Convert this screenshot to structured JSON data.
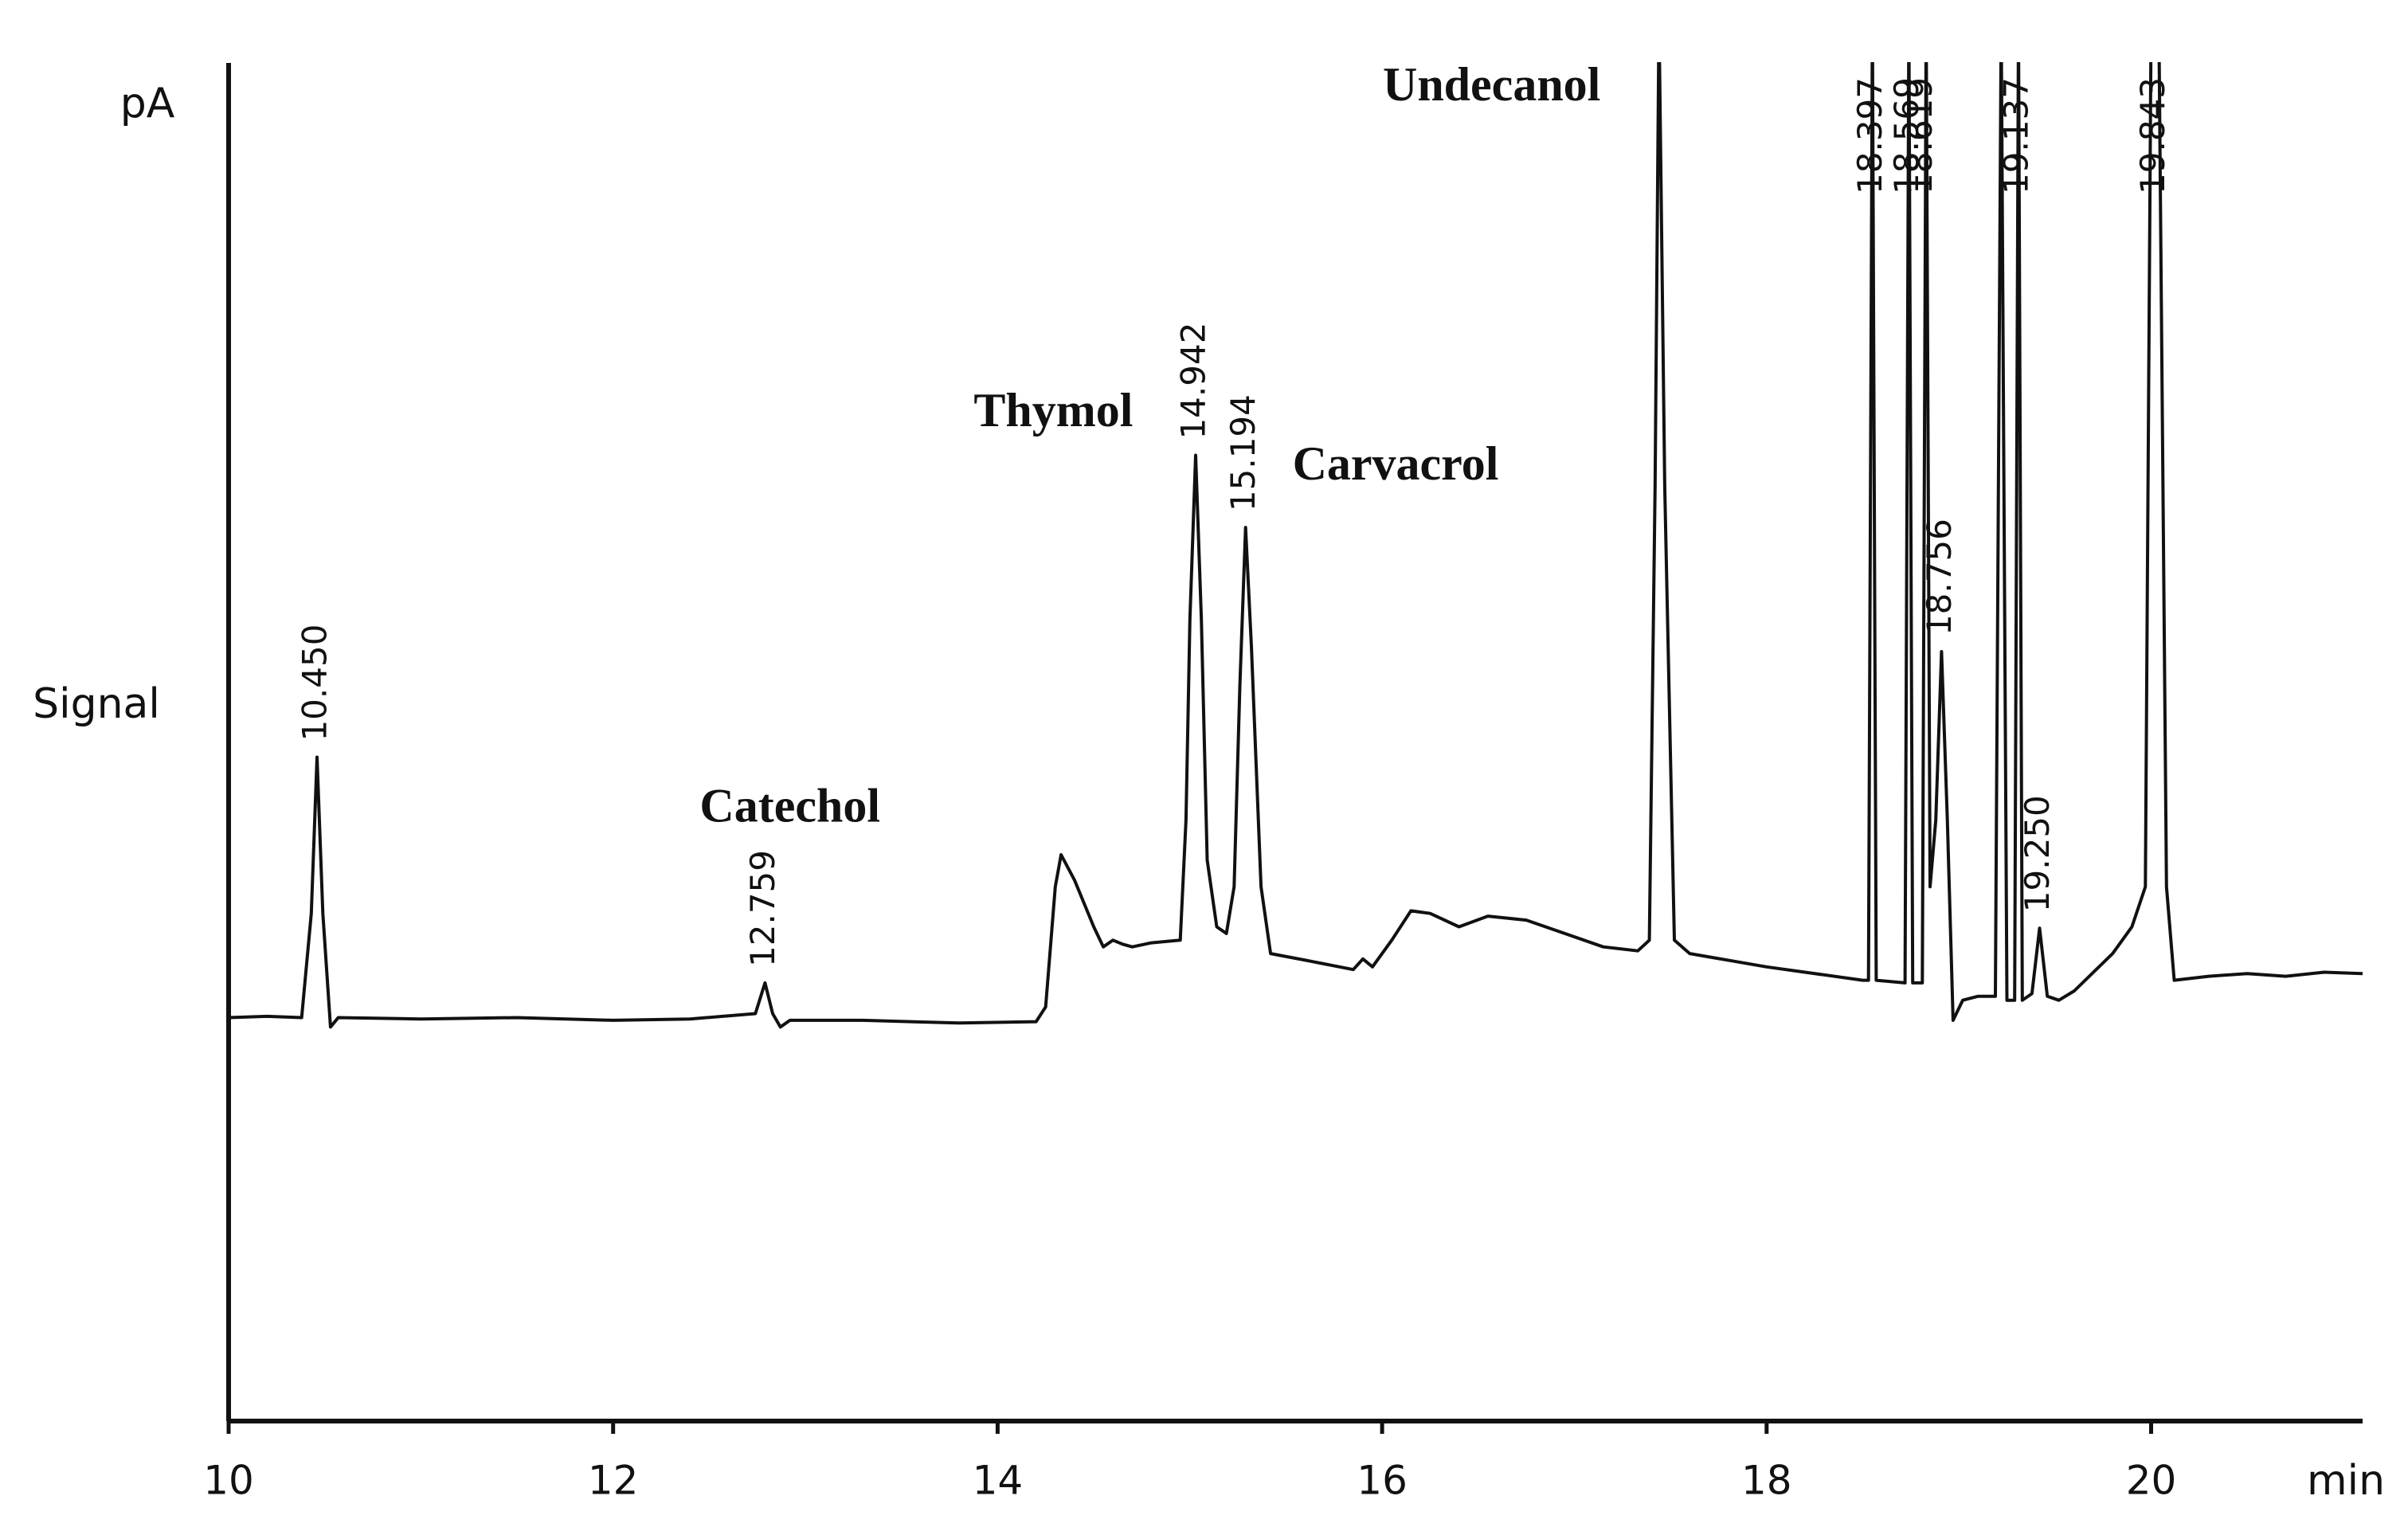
{
  "chart_data": {
    "type": "line",
    "y_axis_unit": "pA",
    "y_axis_label": "Signal",
    "x_axis_unit": "min",
    "xlim": [
      10,
      21.1
    ],
    "xticks": [
      10,
      12,
      14,
      16,
      18,
      20
    ],
    "ylim": [
      0,
      100
    ],
    "series": [
      {
        "color": "#111111",
        "x": [
          10.0,
          10.2,
          10.38,
          10.43,
          10.46,
          10.49,
          10.53,
          10.57,
          11.0,
          11.5,
          12.0,
          12.4,
          12.74,
          12.79,
          12.83,
          12.87,
          12.92,
          13.3,
          13.8,
          14.2,
          14.25,
          14.3,
          14.33,
          14.4,
          14.5,
          14.55,
          14.6,
          14.65,
          14.7,
          14.8,
          14.95,
          14.98,
          15.0,
          15.03,
          15.06,
          15.09,
          15.14,
          15.19,
          15.23,
          15.26,
          15.29,
          15.32,
          15.37,
          15.42,
          15.6,
          15.85,
          15.9,
          15.95,
          16.05,
          16.15,
          16.25,
          16.4,
          16.55,
          16.75,
          16.95,
          17.15,
          17.33,
          17.39,
          17.42,
          17.44,
          17.47,
          17.52,
          17.6,
          18.0,
          18.5,
          18.53,
          18.55,
          18.57,
          18.72,
          18.74,
          18.76,
          18.81,
          18.83,
          18.85,
          18.88,
          18.91,
          18.94,
          18.97,
          19.02,
          19.1,
          19.19,
          19.22,
          19.25,
          19.29,
          19.31,
          19.33,
          19.38,
          19.42,
          19.46,
          19.52,
          19.6,
          19.8,
          19.9,
          19.97,
          20.0,
          20.04,
          20.08,
          20.12,
          20.3,
          20.5,
          20.7,
          20.9,
          21.1
        ],
        "values": [
          30.2,
          30.3,
          30.2,
          38,
          49.7,
          38,
          29.5,
          30.2,
          30.1,
          30.2,
          30.0,
          30.1,
          30.5,
          32.8,
          30.5,
          29.5,
          30.0,
          30.0,
          29.8,
          29.9,
          31,
          40,
          42.4,
          40.5,
          37,
          35.5,
          36.0,
          35.7,
          35.5,
          35.8,
          36,
          45,
          60,
          72.3,
          60,
          42,
          37,
          36.5,
          40,
          55,
          66.9,
          58,
          40,
          35,
          34.5,
          33.8,
          34.6,
          34.0,
          36.0,
          38.2,
          38.0,
          37.0,
          37.8,
          37.5,
          36.5,
          35.5,
          35.2,
          36,
          70,
          105,
          70,
          36,
          35,
          34,
          33,
          33,
          105,
          33,
          32.8,
          105,
          32.8,
          32.8,
          105,
          40,
          45,
          57.6,
          45,
          30,
          31.5,
          31.8,
          31.8,
          105,
          31.5,
          31.5,
          105,
          31.5,
          32,
          36.9,
          31.8,
          31.5,
          32.2,
          35,
          37,
          40,
          105,
          105,
          40,
          33,
          33.3,
          33.5,
          33.3,
          33.6,
          33.5
        ]
      }
    ],
    "peak_labels": [
      {
        "text": "10.450",
        "x": 10.46,
        "y": 49.7
      },
      {
        "text": "12.759",
        "x": 12.79,
        "y": 32.8
      },
      {
        "text": "14.942",
        "x": 15.03,
        "y": 72.3
      },
      {
        "text": "15.194",
        "x": 15.29,
        "y": 66.9
      },
      {
        "text": "18.397",
        "x": 18.55,
        "y": 105
      },
      {
        "text": "18.569",
        "x": 18.74,
        "y": 105
      },
      {
        "text": "18.619",
        "x": 18.81,
        "y": 105
      },
      {
        "text": "18.756",
        "x": 18.91,
        "y": 57.6
      },
      {
        "text": "19.137",
        "x": 19.31,
        "y": 105
      },
      {
        "text": "19.250",
        "x": 19.42,
        "y": 36.9
      },
      {
        "text": "19.843",
        "x": 20.02,
        "y": 105
      }
    ],
    "annotations": [
      {
        "text": "Catechol",
        "x": 12.92,
        "y": 45.7
      },
      {
        "text": "Thymol",
        "x": 14.29,
        "y": 75.3
      },
      {
        "text": "Carvacrol",
        "x": 16.07,
        "y": 71.3
      },
      {
        "text": "Undecanol",
        "x": 16.57,
        "y": 99.7
      }
    ]
  }
}
